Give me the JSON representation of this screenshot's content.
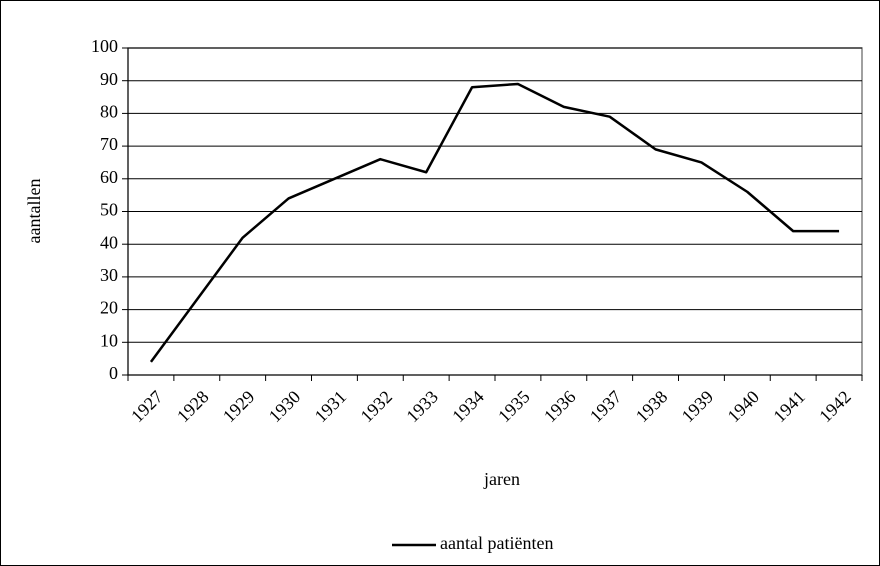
{
  "chart_data": {
    "type": "line",
    "x_label": "jaren",
    "y_label": "aantallen",
    "categories": [
      "1927",
      "1928",
      "1929",
      "1930",
      "1931",
      "1932",
      "1933",
      "1934",
      "1935",
      "1936",
      "1937",
      "1938",
      "1939",
      "1940",
      "1941",
      "1942"
    ],
    "series": [
      {
        "name": "aantal patiënten",
        "color": "#000000",
        "values": [
          4,
          23,
          42,
          54,
          60,
          66,
          62,
          88,
          89,
          82,
          79,
          69,
          65,
          56,
          44,
          44
        ]
      }
    ],
    "ylim": [
      0,
      100
    ],
    "yticks": [
      0,
      10,
      20,
      30,
      40,
      50,
      60,
      70,
      80,
      90,
      100
    ],
    "grid": true,
    "legend": "bottom"
  }
}
